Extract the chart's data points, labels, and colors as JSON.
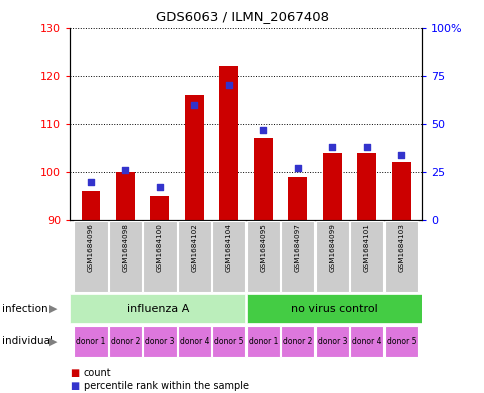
{
  "title": "GDS6063 / ILMN_2067408",
  "samples": [
    "GSM1684096",
    "GSM1684098",
    "GSM1684100",
    "GSM1684102",
    "GSM1684104",
    "GSM1684095",
    "GSM1684097",
    "GSM1684099",
    "GSM1684101",
    "GSM1684103"
  ],
  "counts": [
    96,
    100,
    95,
    116,
    122,
    107,
    99,
    104,
    104,
    102
  ],
  "percentiles": [
    20,
    26,
    17,
    60,
    70,
    47,
    27,
    38,
    38,
    34
  ],
  "ylim_left": [
    90,
    130
  ],
  "ylim_right": [
    0,
    100
  ],
  "yticks_left": [
    90,
    100,
    110,
    120,
    130
  ],
  "yticks_right": [
    0,
    25,
    50,
    75,
    100
  ],
  "ytick_labels_right": [
    "0",
    "25",
    "50",
    "75",
    "100%"
  ],
  "infection_labels": [
    "influenza A",
    "no virus control"
  ],
  "individual_labels": [
    "donor 1",
    "donor 2",
    "donor 3",
    "donor 4",
    "donor 5",
    "donor 1",
    "donor 2",
    "donor 3",
    "donor 4",
    "donor 5"
  ],
  "bar_color": "#cc0000",
  "dot_color": "#3333cc",
  "infection_color_1": "#bbeebb",
  "infection_color_2": "#44cc44",
  "individual_color": "#dd77dd",
  "sample_bg_color": "#cccccc",
  "background_color": "#ffffff",
  "border_color": "#000000"
}
